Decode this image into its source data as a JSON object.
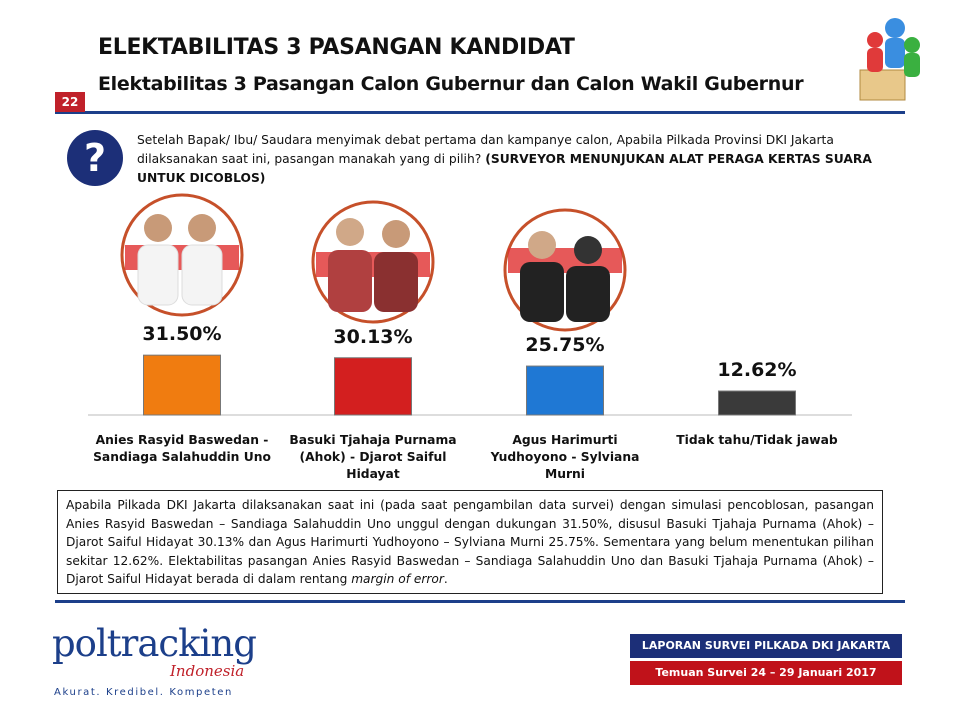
{
  "slide_number": "22",
  "title": "ELEKTABILITAS 3 PASANGAN KANDIDAT",
  "subtitle": "Elektabilitas 3 Pasangan Calon Gubernur dan Calon Wakil Gubernur",
  "question": {
    "text": "Setelah Bapak/ Ibu/ Saudara menyimak debat pertama dan kampanye calon, Apabila Pilkada Provinsi DKI Jakarta dilaksanakan saat ini, pasangan manakah yang di pilih?",
    "bold": "(SURVEYOR MENUNJUKAN ALAT PERAGA KERTAS SUARA UNTUK DICOBLOS)"
  },
  "chart_data": {
    "type": "bar",
    "categories": [
      "Anies Rasyid Baswedan - Sandiaga Salahuddin Uno",
      "Basuki Tjahaja Purnama (Ahok) - Djarot Saiful Hidayat",
      "Agus Harimurti Yudhoyono - Sylviana Murni",
      "Tidak tahu/Tidak jawab"
    ],
    "values": [
      31.5,
      30.13,
      25.75,
      12.62
    ],
    "value_labels": [
      "31.50%",
      "30.13%",
      "25.75%",
      "12.62%"
    ],
    "colors": [
      "#f07c10",
      "#d31f1f",
      "#1f78d4",
      "#3a3a3a"
    ]
  },
  "summary": {
    "text": "Apabila Pilkada DKI Jakarta dilaksanakan saat ini (pada saat pengambilan data survei) dengan simulasi pencoblosan, pasangan Anies Rasyid Baswedan – Sandiaga Salahuddin Uno unggul dengan dukungan 31.50%, disusul Basuki Tjahaja Purnama (Ahok) – Djarot Saiful Hidayat 30.13% dan Agus Harimurti Yudhoyono – Sylviana Murni 25.75%. Sementara yang belum menentukan pilihan sekitar 12.62%. Elektabilitas pasangan Anies Rasyid Baswedan – Sandiaga Salahuddin Uno dan Basuki Tjahaja Purnama (Ahok) – Djarot Saiful Hidayat berada di dalam rentang",
    "italic": "margin of error",
    "end": "."
  },
  "logo": {
    "name": "poltracking",
    "sub": "Indonesia",
    "tagline": "Akurat. Kredibel. Kompeten"
  },
  "footer": {
    "report": "LAPORAN SURVEI PILKADA DKI JAKARTA",
    "period": "Temuan Survei 24 – 29 Januari 2017"
  }
}
